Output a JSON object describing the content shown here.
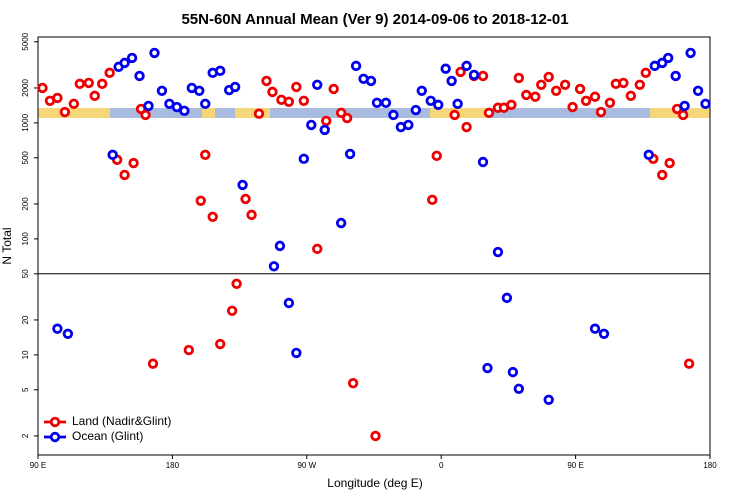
{
  "chart_data": {
    "type": "scatter",
    "title": "55N-60N Annual Mean (Ver 9)   2014-09-06 to 2018-12-01",
    "x_label": "Longitude (deg E)",
    "y_label": "N Total",
    "log_y": true,
    "xlim": [
      90,
      540
    ],
    "ylim": [
      1.37,
      5500
    ],
    "xticks": [
      {
        "value": 90,
        "label": "90 E"
      },
      180,
      {
        "value": 270,
        "label": "90 W"
      },
      {
        "value": 360,
        "label": "0"
      },
      {
        "value": 450,
        "label": "90 E"
      },
      {
        "value": 540,
        "label": "180"
      }
    ],
    "yticks": [
      2,
      5,
      10,
      20,
      50,
      100,
      200,
      500,
      1000,
      2000,
      5000
    ],
    "hline": 50,
    "legend": "lower left",
    "series": [
      {
        "name": "Land (Nadir&Glint)",
        "color": "#ee0000",
        "x": [
          93,
          98,
          103,
          108,
          114,
          118,
          124,
          128,
          133,
          138,
          143,
          148,
          154,
          159,
          162,
          167,
          191,
          199,
          202,
          207,
          212,
          220,
          223,
          229,
          233,
          238,
          243,
          247,
          253,
          258,
          263,
          268,
          277,
          283,
          288,
          293,
          297,
          301,
          316,
          354,
          357,
          369,
          373,
          377,
          382,
          388,
          392,
          398,
          402,
          407,
          412,
          417,
          423,
          427,
          432,
          437,
          443,
          448,
          453,
          457,
          463,
          467,
          473,
          477,
          482,
          487,
          493,
          497,
          502,
          508,
          513,
          518,
          522,
          526
        ],
        "values": [
          2000,
          1550,
          1640,
          1240,
          1460,
          2170,
          2210,
          1710,
          2170,
          2700,
          480,
          356,
          450,
          1320,
          1170,
          8.4,
          11,
          213,
          530,
          155,
          12.4,
          24,
          41,
          221,
          161,
          1200,
          2300,
          1850,
          1580,
          1520,
          2040,
          1550,
          82,
          1040,
          1960,
          1220,
          1100,
          5.7,
          2.0,
          217,
          520,
          1170,
          2750,
          920,
          2540,
          2540,
          1220,
          1350,
          1350,
          1430,
          2440,
          1740,
          1680,
          2130,
          2490,
          1890,
          2130,
          1370,
          1960,
          1550,
          1680,
          1240,
          1490,
          2170,
          2210,
          1710,
          2130,
          2700,
          490,
          356,
          450,
          1320,
          1170,
          8.4
        ]
      },
      {
        "name": "Ocean (Glint)",
        "color": "#0000ee",
        "x": [
          103,
          110,
          140,
          144,
          148,
          153,
          158,
          164,
          168,
          173,
          178,
          183,
          188,
          193,
          198,
          202,
          207,
          212,
          218,
          222,
          227,
          248,
          252,
          258,
          263,
          268,
          273,
          277,
          282,
          293,
          299,
          303,
          308,
          313,
          317,
          323,
          328,
          333,
          338,
          343,
          347,
          353,
          358,
          363,
          367,
          371,
          377,
          382,
          388,
          391,
          398,
          404,
          408,
          412,
          432,
          463,
          469,
          499,
          503,
          508,
          512,
          517,
          523,
          527,
          532,
          537
        ],
        "values": [
          16.8,
          15.2,
          530,
          3040,
          3290,
          3630,
          2540,
          1400,
          4010,
          1890,
          1460,
          1370,
          1270,
          2000,
          1890,
          1460,
          2700,
          2810,
          1920,
          2040,
          292,
          58,
          87,
          28,
          10.4,
          490,
          960,
          2130,
          870,
          137,
          540,
          3100,
          2400,
          2300,
          1490,
          1490,
          1170,
          920,
          960,
          1290,
          1890,
          1550,
          1430,
          2930,
          2300,
          1460,
          3100,
          2590,
          460,
          7.7,
          77,
          31,
          7.1,
          5.1,
          4.1,
          16.8,
          15.2,
          530,
          3100,
          3290,
          3630,
          2540,
          1400,
          4010,
          1890,
          1460
        ]
      }
    ]
  }
}
